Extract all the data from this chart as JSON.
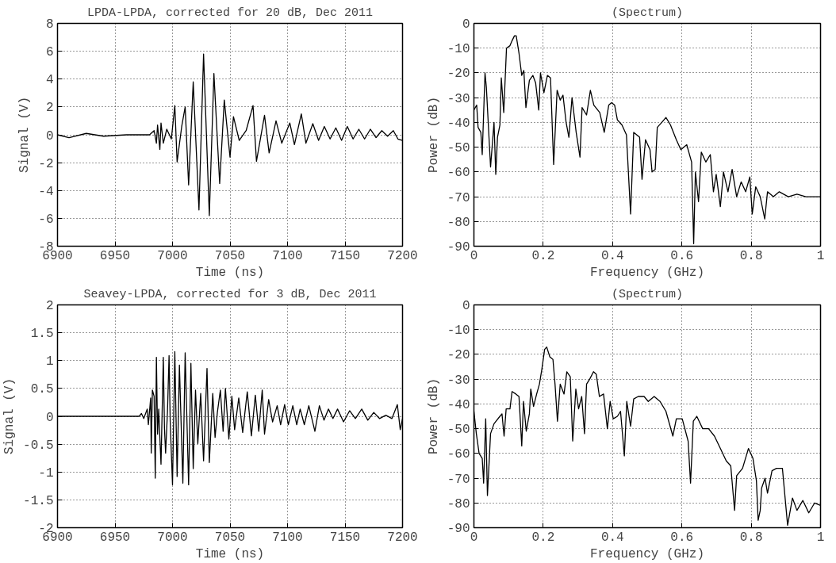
{
  "chart_data": [
    {
      "type": "line",
      "title": "LPDA-LPDA, corrected for 20 dB, Dec 2011",
      "xlabel": "Time (ns)",
      "ylabel": "Signal (V)",
      "xlim": [
        6900,
        7200
      ],
      "ylim": [
        -8,
        8
      ],
      "xticks": [
        6900,
        6950,
        7000,
        7050,
        7100,
        7150,
        7200
      ],
      "yticks": [
        -8,
        -6,
        -4,
        -2,
        0,
        2,
        4,
        6,
        8
      ],
      "grid": true,
      "marker": "none",
      "line_style": "solid",
      "series": [
        {
          "color": "#000000",
          "x": [
            6900,
            6910,
            6925,
            6940,
            6960,
            6980,
            6984,
            6986,
            6987,
            6989,
            6990,
            6992,
            6995,
            6999,
            7002,
            7004,
            7008,
            7011,
            7014,
            7018,
            7023,
            7027,
            7032,
            7036,
            7041,
            7045,
            7050,
            7053,
            7058,
            7064,
            7070,
            7073,
            7080,
            7084,
            7090,
            7095,
            7102,
            7106,
            7112,
            7116,
            7122,
            7127,
            7132,
            7137,
            7142,
            7147,
            7152,
            7157,
            7162,
            7167,
            7172,
            7177,
            7182,
            7187,
            7192,
            7196,
            7200
          ],
          "values": [
            0,
            -0.2,
            0.1,
            -0.1,
            0,
            0,
            0.3,
            -0.6,
            0.7,
            -1.05,
            0.85,
            -0.6,
            0.4,
            -0.3,
            2.1,
            -1.95,
            0.6,
            2,
            -3.6,
            3.8,
            -5.4,
            5.8,
            -5.8,
            4.4,
            -3.5,
            2.5,
            -1.6,
            1.3,
            -0.4,
            0.3,
            2.1,
            -1.9,
            1.4,
            -1.3,
            1,
            -0.6,
            0.85,
            -0.7,
            1.5,
            -0.6,
            0.8,
            -0.4,
            0.6,
            -0.3,
            0.5,
            -0.4,
            0.6,
            -0.3,
            0.4,
            -0.3,
            0.4,
            -0.2,
            0.3,
            -0.1,
            0.3,
            -0.3,
            -0.4
          ]
        }
      ]
    },
    {
      "type": "line",
      "title": "(Spectrum)",
      "xlabel": "Frequency (GHz)",
      "ylabel": "Power (dB)",
      "xlim": [
        0,
        1
      ],
      "ylim": [
        -90,
        0
      ],
      "xticks": [
        0,
        0.2,
        0.4,
        0.6,
        0.8,
        1
      ],
      "yticks": [
        -90,
        -80,
        -70,
        -60,
        -50,
        -40,
        -30,
        -20,
        -10,
        0
      ],
      "grid": true,
      "marker": "none",
      "line_style": "solid",
      "series": [
        {
          "color": "#000000",
          "x": [
            0,
            0.008,
            0.012,
            0.02,
            0.024,
            0.032,
            0.036,
            0.048,
            0.058,
            0.063,
            0.068,
            0.075,
            0.079,
            0.086,
            0.094,
            0.104,
            0.11,
            0.117,
            0.122,
            0.13,
            0.138,
            0.144,
            0.15,
            0.16,
            0.17,
            0.178,
            0.187,
            0.192,
            0.202,
            0.212,
            0.221,
            0.23,
            0.24,
            0.249,
            0.257,
            0.266,
            0.274,
            0.283,
            0.295,
            0.306,
            0.312,
            0.325,
            0.336,
            0.346,
            0.363,
            0.376,
            0.389,
            0.397,
            0.406,
            0.414,
            0.427,
            0.44,
            0.452,
            0.461,
            0.478,
            0.485,
            0.495,
            0.508,
            0.514,
            0.523,
            0.529,
            0.542,
            0.554,
            0.567,
            0.584,
            0.597,
            0.614,
            0.628,
            0.634,
            0.639,
            0.648,
            0.656,
            0.669,
            0.682,
            0.691,
            0.699,
            0.711,
            0.72,
            0.733,
            0.745,
            0.758,
            0.771,
            0.784,
            0.796,
            0.803,
            0.813,
            0.826,
            0.839,
            0.847,
            0.864,
            0.881,
            0.907,
            0.932,
            0.958,
            1
          ],
          "values": [
            -35,
            -33,
            -42,
            -44,
            -53,
            -20,
            -26,
            -58,
            -40,
            -61,
            -46,
            -41,
            -22,
            -36,
            -10,
            -9,
            -7,
            -5,
            -5,
            -12,
            -21,
            -19,
            -34,
            -23,
            -21,
            -24,
            -35,
            -20,
            -28,
            -21,
            -22,
            -57,
            -27,
            -31,
            -29,
            -40,
            -46,
            -30,
            -44,
            -54,
            -34,
            -37,
            -27,
            -33,
            -36,
            -44,
            -33,
            -32,
            -33,
            -39,
            -41,
            -45,
            -77,
            -44,
            -46,
            -63,
            -47,
            -51,
            -60,
            -59,
            -42,
            -40,
            -38,
            -41,
            -47,
            -51,
            -49,
            -56,
            -89,
            -60,
            -72,
            -52,
            -56,
            -53,
            -68,
            -61,
            -74,
            -60,
            -68,
            -59,
            -70,
            -64,
            -68,
            -62,
            -77,
            -66,
            -70,
            -79,
            -68,
            -70,
            -68,
            -70,
            -69,
            -70,
            -70
          ]
        }
      ]
    },
    {
      "type": "line",
      "title": "Seavey-LPDA, corrected for 3 dB, Dec 2011",
      "xlabel": "Time (ns)",
      "ylabel": "Signal (V)",
      "xlim": [
        6900,
        7200
      ],
      "ylim": [
        -2,
        2
      ],
      "xticks": [
        6900,
        6950,
        7000,
        7050,
        7100,
        7150,
        7200
      ],
      "yticks": [
        -2,
        -1.5,
        -1,
        -0.5,
        0,
        0.5,
        1,
        1.5,
        2
      ],
      "grid": true,
      "marker": "none",
      "line_style": "solid",
      "series": [
        {
          "color": "#000000",
          "x": [
            6900,
            6971,
            6973,
            6975,
            6978,
            6979,
            6981,
            6981.5,
            6982.5,
            6984,
            6985,
            6986,
            6987,
            6988,
            6989,
            6990,
            6992,
            6993,
            6994,
            6995.6,
            6997,
            6998,
            7000,
            7002,
            7004,
            7006,
            7009,
            7011,
            7014,
            7016,
            7018,
            7020,
            7022,
            7024.5,
            7027,
            7030,
            7032,
            7035,
            7037,
            7039,
            7041.6,
            7044,
            7046,
            7049,
            7051.6,
            7054,
            7057.6,
            7061,
            7065,
            7068.6,
            7072,
            7075,
            7078,
            7080,
            7083.6,
            7087,
            7091,
            7094,
            7097.5,
            7100.7,
            7104.6,
            7108,
            7111,
            7114.6,
            7118.5,
            7123.8,
            7127.7,
            7131.7,
            7135.6,
            7139.5,
            7143.5,
            7148.7,
            7154,
            7159,
            7164.5,
            7169.8,
            7175,
            7180,
            7185.5,
            7190.8,
            7195.5,
            7198,
            7200
          ],
          "values": [
            0,
            0,
            0.05,
            -0.04,
            0.13,
            -0.15,
            0.33,
            -0.66,
            0.47,
            0.36,
            -1.11,
            1.06,
            -0.32,
            0.13,
            -0.38,
            -0.86,
            1.06,
            -0.21,
            -0.66,
            0.07,
            1.09,
            -0.1,
            -1.23,
            1.16,
            -1.08,
            0.92,
            -1.2,
            1.14,
            -1.23,
            0.95,
            -0.94,
            0.47,
            -0.49,
            0.41,
            -0.8,
            0.86,
            -0.83,
            0.41,
            -0.38,
            0.07,
            0.47,
            -0.27,
            0.5,
            -0.41,
            0.36,
            -0.24,
            0.33,
            -0.29,
            0.44,
            -0.35,
            0.38,
            -0.27,
            0.47,
            -0.32,
            0.3,
            -0.1,
            0.19,
            -0.15,
            0.21,
            -0.15,
            0.19,
            -0.15,
            0.13,
            -0.15,
            0.19,
            -0.27,
            0.19,
            -0.07,
            0.13,
            -0.04,
            0.13,
            -0.1,
            0.1,
            -0.04,
            0.13,
            -0.07,
            0.07,
            -0.04,
            0.02,
            -0.04,
            0.21,
            -0.24,
            -0.04
          ]
        }
      ]
    },
    {
      "type": "line",
      "title": "(Spectrum)",
      "xlabel": "Frequency (GHz)",
      "ylabel": "Power (dB)",
      "xlim": [
        0,
        1
      ],
      "ylim": [
        -90,
        0
      ],
      "xticks": [
        0,
        0.2,
        0.4,
        0.6,
        0.8,
        1
      ],
      "yticks": [
        -90,
        -80,
        -70,
        -60,
        -50,
        -40,
        -30,
        -20,
        -10,
        0
      ],
      "grid": true,
      "marker": "none",
      "line_style": "solid",
      "series": [
        {
          "color": "#000000",
          "x": [
            0,
            0.007,
            0.015,
            0.024,
            0.028,
            0.034,
            0.039,
            0.048,
            0.058,
            0.075,
            0.081,
            0.087,
            0.093,
            0.104,
            0.11,
            0.121,
            0.13,
            0.138,
            0.143,
            0.151,
            0.16,
            0.164,
            0.172,
            0.181,
            0.189,
            0.196,
            0.204,
            0.21,
            0.219,
            0.228,
            0.234,
            0.241,
            0.249,
            0.26,
            0.268,
            0.278,
            0.285,
            0.294,
            0.302,
            0.311,
            0.319,
            0.325,
            0.334,
            0.345,
            0.353,
            0.362,
            0.374,
            0.385,
            0.393,
            0.402,
            0.414,
            0.423,
            0.434,
            0.441,
            0.452,
            0.461,
            0.474,
            0.491,
            0.503,
            0.52,
            0.537,
            0.554,
            0.574,
            0.584,
            0.601,
            0.618,
            0.625,
            0.633,
            0.643,
            0.66,
            0.677,
            0.694,
            0.711,
            0.728,
            0.741,
            0.752,
            0.758,
            0.775,
            0.792,
            0.805,
            0.815,
            0.82,
            0.826,
            0.83,
            0.84,
            0.847,
            0.86,
            0.873,
            0.89,
            0.905,
            0.919,
            0.932,
            0.949,
            0.966,
            0.983,
            1
          ],
          "values": [
            -43,
            -52,
            -60,
            -62,
            -72,
            -46,
            -77,
            -52,
            -48,
            -45,
            -44,
            -53,
            -42,
            -42,
            -35,
            -36,
            -37,
            -57,
            -39,
            -51,
            -44,
            -34,
            -41,
            -36,
            -32,
            -26,
            -18,
            -17,
            -21,
            -22,
            -32,
            -47,
            -32,
            -36,
            -27,
            -29,
            -55,
            -34,
            -42,
            -37,
            -52,
            -32,
            -30,
            -27,
            -28,
            -37,
            -36,
            -50,
            -39,
            -46,
            -45,
            -43,
            -61,
            -39,
            -49,
            -38,
            -37,
            -37,
            -39,
            -37,
            -39,
            -43,
            -53,
            -46,
            -46,
            -55,
            -72,
            -47,
            -45,
            -50,
            -50,
            -53,
            -58,
            -63,
            -65,
            -83,
            -69,
            -66,
            -58,
            -62,
            -71,
            -87,
            -83,
            -74,
            -70,
            -76,
            -67,
            -66,
            -66,
            -89,
            -78,
            -83,
            -79,
            -84,
            -80,
            -81
          ]
        }
      ]
    }
  ]
}
